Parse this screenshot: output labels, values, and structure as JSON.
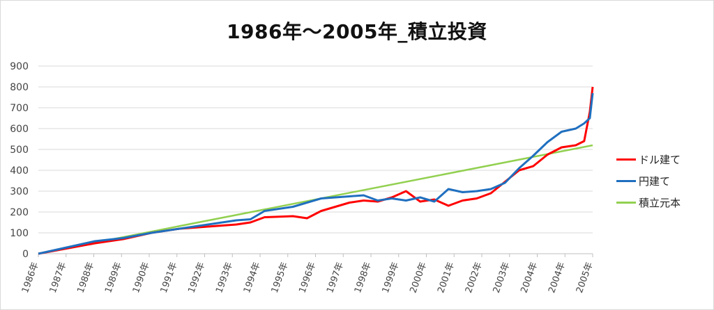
{
  "chart_data": {
    "type": "line",
    "title": "1986年～2005年_積立投資",
    "xlabel": "",
    "ylabel": "",
    "ylim": [
      0,
      900
    ],
    "yticks": [
      0,
      100,
      200,
      300,
      400,
      500,
      600,
      700,
      800,
      900
    ],
    "x_tick_labels": [
      "1986年",
      "1987年",
      "1988年",
      "1989年",
      "1990年",
      "1991年",
      "1992年",
      "1993年",
      "1994年",
      "1995年",
      "1996年",
      "1997年",
      "1998年",
      "1999年",
      "2000年",
      "2001年",
      "2002年",
      "2003年",
      "2004年",
      "2004年",
      "2005年"
    ],
    "grid": "horizontal",
    "legend_position": "right",
    "series": [
      {
        "name": "ドル建て",
        "color": "#ff0000",
        "x": [
          1986.0,
          1987.0,
          1988.0,
          1989.0,
          1990.0,
          1990.5,
          1991.0,
          1992.0,
          1993.0,
          1993.5,
          1994.0,
          1995.0,
          1995.5,
          1996.0,
          1997.0,
          1997.5,
          1998.0,
          1998.5,
          1999.0,
          1999.5,
          2000.0,
          2000.5,
          2001.0,
          2001.5,
          2002.0,
          2002.5,
          2003.0,
          2003.5,
          2004.0,
          2004.5,
          2005.0,
          2005.3,
          2005.5,
          2005.6
        ],
        "values": [
          0,
          25,
          50,
          70,
          100,
          110,
          120,
          130,
          140,
          150,
          175,
          180,
          170,
          205,
          245,
          255,
          250,
          270,
          300,
          250,
          260,
          230,
          255,
          265,
          290,
          345,
          400,
          420,
          475,
          510,
          520,
          540,
          680,
          800
        ]
      },
      {
        "name": "円建て",
        "color": "#1f6fbf",
        "x": [
          1986.0,
          1987.0,
          1988.0,
          1989.0,
          1990.0,
          1990.5,
          1991.0,
          1992.0,
          1993.0,
          1993.5,
          1994.0,
          1995.0,
          1995.5,
          1996.0,
          1997.0,
          1997.5,
          1998.0,
          1998.5,
          1999.0,
          1999.5,
          2000.0,
          2000.5,
          2001.0,
          2001.5,
          2002.0,
          2002.5,
          2003.0,
          2003.5,
          2004.0,
          2004.5,
          2005.0,
          2005.3,
          2005.5,
          2005.6
        ],
        "values": [
          0,
          30,
          60,
          75,
          100,
          110,
          120,
          140,
          160,
          165,
          205,
          225,
          245,
          265,
          275,
          280,
          255,
          265,
          255,
          270,
          250,
          310,
          295,
          300,
          310,
          340,
          410,
          470,
          535,
          585,
          600,
          625,
          650,
          770
        ]
      },
      {
        "name": "積立元本",
        "color": "#92d050",
        "x": [
          1986.0,
          2005.6
        ],
        "values": [
          0,
          520
        ]
      }
    ]
  }
}
